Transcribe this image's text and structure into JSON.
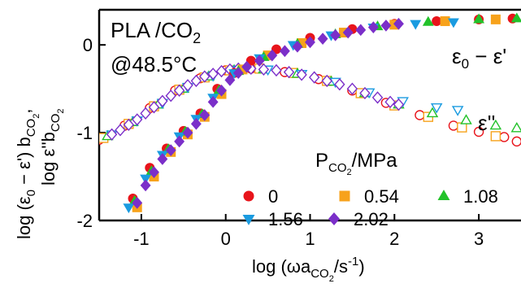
{
  "chart_data": {
    "type": "scatter",
    "title_line1": "PLA /CO",
    "title_line1_sub": "2",
    "title_line2": "@48.5°C",
    "xlabel": {
      "prefix": "log (ωa",
      "sub": "CO",
      "subsub": "2",
      "suffix": "/s",
      "sup": "-1",
      "close": ")"
    },
    "ylabel_line1": {
      "text1": "log  (ε",
      "sub1": "0",
      "text2": " − ε') b",
      "sub2": "CO",
      "subsub2": "2",
      "tail": ","
    },
    "ylabel_line2": {
      "text1": "log ε''b",
      "sub1": "CO",
      "subsub1": "2"
    },
    "xlim": [
      -1.5,
      3.5
    ],
    "ylim": [
      -2,
      0.4
    ],
    "xticks": [
      "-1",
      "0",
      "1",
      "2",
      "3"
    ],
    "yticks": [
      "-2",
      "-1",
      "0"
    ],
    "annotations": {
      "storage": "ε",
      "storage_sub": "0",
      "storage_tail": " − ε'",
      "loss": "ε''"
    },
    "legend": {
      "title": "P",
      "title_sub": "CO",
      "title_subsub": "2",
      "title_tail": "/MPa",
      "placement": "lower-right"
    },
    "series": [
      {
        "name": "0",
        "marker": "circle",
        "color": "#e8141b",
        "storage": [
          [
            -1.1,
            -1.75
          ],
          [
            -0.9,
            -1.4
          ],
          [
            -0.7,
            -1.18
          ],
          [
            -0.5,
            -0.98
          ],
          [
            -0.3,
            -0.78
          ],
          [
            -0.1,
            -0.5
          ],
          [
            0.1,
            -0.32
          ],
          [
            0.3,
            -0.18
          ],
          [
            0.6,
            -0.05
          ],
          [
            1.0,
            0.08
          ],
          [
            1.5,
            0.18
          ],
          [
            2.0,
            0.24
          ],
          [
            2.5,
            0.27
          ],
          [
            3.0,
            0.29
          ],
          [
            3.4,
            0.3
          ]
        ],
        "loss": [
          [
            -1.5,
            -1.08
          ],
          [
            -1.2,
            -0.92
          ],
          [
            -0.9,
            -0.72
          ],
          [
            -0.6,
            -0.52
          ],
          [
            -0.3,
            -0.38
          ],
          [
            0.0,
            -0.29
          ],
          [
            0.3,
            -0.27
          ],
          [
            0.7,
            -0.31
          ],
          [
            1.1,
            -0.39
          ],
          [
            1.5,
            -0.52
          ],
          [
            1.9,
            -0.66
          ],
          [
            2.3,
            -0.8
          ],
          [
            2.7,
            -0.92
          ],
          [
            3.0,
            -0.99
          ],
          [
            3.3,
            -1.05
          ],
          [
            3.45,
            -1.1
          ]
        ]
      },
      {
        "name": "0.54",
        "marker": "square",
        "color": "#f7a21b",
        "storage": [
          [
            -1.05,
            -1.85
          ],
          [
            -0.85,
            -1.5
          ],
          [
            -0.65,
            -1.22
          ],
          [
            -0.45,
            -1.02
          ],
          [
            -0.25,
            -0.82
          ],
          [
            -0.05,
            -0.56
          ],
          [
            0.2,
            -0.28
          ],
          [
            0.5,
            -0.12
          ],
          [
            0.9,
            0.02
          ],
          [
            1.4,
            0.14
          ],
          [
            2.0,
            0.23
          ],
          [
            2.6,
            0.27
          ],
          [
            3.2,
            0.29
          ]
        ],
        "loss": [
          [
            -1.45,
            -1.06
          ],
          [
            -1.15,
            -0.9
          ],
          [
            -0.85,
            -0.7
          ],
          [
            -0.55,
            -0.51
          ],
          [
            -0.25,
            -0.37
          ],
          [
            0.05,
            -0.29
          ],
          [
            0.4,
            -0.27
          ],
          [
            0.8,
            -0.32
          ],
          [
            1.2,
            -0.41
          ],
          [
            1.6,
            -0.55
          ],
          [
            2.0,
            -0.69
          ],
          [
            2.4,
            -0.82
          ],
          [
            2.8,
            -0.94
          ],
          [
            3.2,
            -1.04
          ]
        ]
      },
      {
        "name": "1.08",
        "marker": "triangle-up",
        "color": "#22c22a",
        "storage": [
          [
            -1.08,
            -1.78
          ],
          [
            -0.88,
            -1.44
          ],
          [
            -0.68,
            -1.19
          ],
          [
            -0.48,
            -0.99
          ],
          [
            -0.28,
            -0.79
          ],
          [
            -0.08,
            -0.52
          ],
          [
            0.15,
            -0.3
          ],
          [
            0.45,
            -0.14
          ],
          [
            0.85,
            0.01
          ],
          [
            1.3,
            0.12
          ],
          [
            1.8,
            0.21
          ],
          [
            2.4,
            0.26
          ],
          [
            3.0,
            0.29
          ],
          [
            3.45,
            0.3
          ]
        ],
        "loss": [
          [
            -1.4,
            -1.04
          ],
          [
            -1.1,
            -0.88
          ],
          [
            -0.8,
            -0.68
          ],
          [
            -0.5,
            -0.5
          ],
          [
            -0.2,
            -0.36
          ],
          [
            0.1,
            -0.29
          ],
          [
            0.45,
            -0.28
          ],
          [
            0.85,
            -0.33
          ],
          [
            1.25,
            -0.42
          ],
          [
            1.65,
            -0.55
          ],
          [
            2.05,
            -0.68
          ],
          [
            2.45,
            -0.78
          ],
          [
            2.85,
            -0.86
          ],
          [
            3.2,
            -0.92
          ],
          [
            3.45,
            -0.95
          ]
        ]
      },
      {
        "name": "1.56",
        "marker": "triangle-down",
        "color": "#1a9be0",
        "storage": [
          [
            -1.15,
            -1.85
          ],
          [
            -0.95,
            -1.52
          ],
          [
            -0.75,
            -1.25
          ],
          [
            -0.55,
            -1.04
          ],
          [
            -0.35,
            -0.84
          ],
          [
            -0.15,
            -0.6
          ],
          [
            0.1,
            -0.32
          ],
          [
            0.4,
            -0.15
          ],
          [
            0.8,
            0.0
          ],
          [
            1.25,
            0.11
          ],
          [
            1.75,
            0.2
          ],
          [
            2.25,
            0.24
          ],
          [
            2.7,
            0.26
          ]
        ],
        "loss": [
          [
            -1.35,
            -1.02
          ],
          [
            -1.05,
            -0.86
          ],
          [
            -0.75,
            -0.66
          ],
          [
            -0.45,
            -0.48
          ],
          [
            -0.15,
            -0.35
          ],
          [
            0.15,
            -0.28
          ],
          [
            0.5,
            -0.28
          ],
          [
            0.9,
            -0.33
          ],
          [
            1.3,
            -0.42
          ],
          [
            1.7,
            -0.54
          ],
          [
            2.1,
            -0.64
          ],
          [
            2.5,
            -0.71
          ],
          [
            2.75,
            -0.74
          ]
        ]
      },
      {
        "name": "2.02",
        "marker": "diamond",
        "color": "#7b2fc9",
        "storage": [
          [
            -1.05,
            -1.8
          ],
          [
            -0.95,
            -1.6
          ],
          [
            -0.85,
            -1.45
          ],
          [
            -0.75,
            -1.3
          ],
          [
            -0.65,
            -1.2
          ],
          [
            -0.55,
            -1.1
          ],
          [
            -0.45,
            -1.0
          ],
          [
            -0.35,
            -0.9
          ],
          [
            -0.25,
            -0.8
          ],
          [
            -0.15,
            -0.65
          ],
          [
            -0.05,
            -0.52
          ],
          [
            0.05,
            -0.4
          ],
          [
            0.15,
            -0.32
          ],
          [
            0.25,
            -0.25
          ],
          [
            0.4,
            -0.18
          ],
          [
            0.55,
            -0.12
          ],
          [
            0.7,
            -0.07
          ],
          [
            0.85,
            -0.02
          ],
          [
            1.0,
            0.03
          ],
          [
            1.15,
            0.07
          ],
          [
            1.3,
            0.11
          ],
          [
            1.45,
            0.14
          ],
          [
            1.6,
            0.17
          ],
          [
            1.75,
            0.2
          ],
          [
            1.9,
            0.22
          ],
          [
            2.05,
            0.24
          ]
        ],
        "loss": [
          [
            -1.35,
            -1.02
          ],
          [
            -1.25,
            -0.97
          ],
          [
            -1.15,
            -0.91
          ],
          [
            -1.05,
            -0.85
          ],
          [
            -0.95,
            -0.78
          ],
          [
            -0.85,
            -0.71
          ],
          [
            -0.75,
            -0.64
          ],
          [
            -0.65,
            -0.58
          ],
          [
            -0.55,
            -0.52
          ],
          [
            -0.45,
            -0.46
          ],
          [
            -0.35,
            -0.41
          ],
          [
            -0.25,
            -0.36
          ],
          [
            -0.15,
            -0.33
          ],
          [
            -0.05,
            -0.3
          ],
          [
            0.05,
            -0.28
          ],
          [
            0.15,
            -0.27
          ],
          [
            0.3,
            -0.27
          ],
          [
            0.45,
            -0.28
          ],
          [
            0.6,
            -0.29
          ],
          [
            0.75,
            -0.31
          ],
          [
            0.9,
            -0.34
          ],
          [
            1.05,
            -0.37
          ],
          [
            1.2,
            -0.41
          ],
          [
            1.35,
            -0.45
          ],
          [
            1.5,
            -0.5
          ],
          [
            1.65,
            -0.55
          ],
          [
            1.8,
            -0.6
          ],
          [
            1.95,
            -0.65
          ],
          [
            2.05,
            -0.68
          ]
        ]
      }
    ]
  }
}
